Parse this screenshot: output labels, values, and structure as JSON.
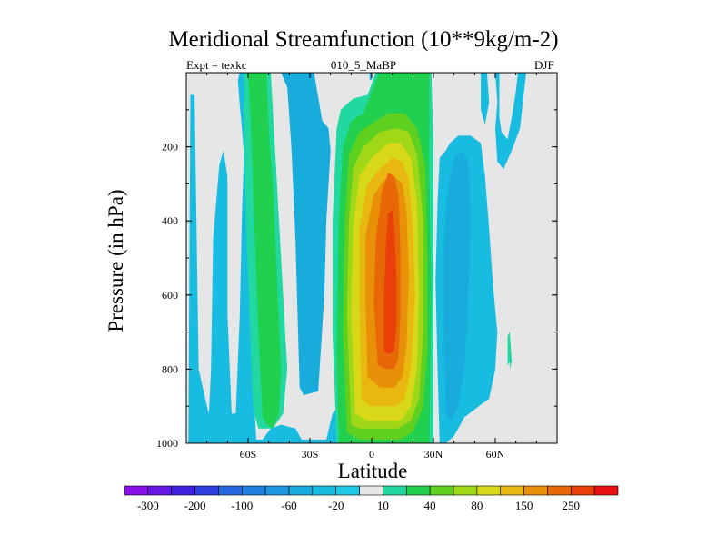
{
  "chart_data": {
    "type": "heatmap",
    "title": "Meridional Streamfunction (10**9kg/m-2)",
    "subtitle_left": "Expt = texkc",
    "subtitle_center": "010_5_MaBP",
    "subtitle_right": "DJF",
    "xlabel": "Latitude",
    "ylabel": "Pressure (in hPa)",
    "xlim": [
      -90,
      90
    ],
    "ylim": [
      1000,
      0
    ],
    "xticks": [
      {
        "value": -60,
        "label": "60S"
      },
      {
        "value": -30,
        "label": "30S"
      },
      {
        "value": 0,
        "label": "0"
      },
      {
        "value": 30,
        "label": "30N"
      },
      {
        "value": 60,
        "label": "60N"
      }
    ],
    "yticks": [
      {
        "value": 200,
        "label": "200"
      },
      {
        "value": 400,
        "label": "400"
      },
      {
        "value": 600,
        "label": "600"
      },
      {
        "value": 800,
        "label": "800"
      },
      {
        "value": 1000,
        "label": "1000"
      }
    ],
    "colorbar": {
      "levels": [
        -300,
        -250,
        -200,
        -150,
        -100,
        -80,
        -60,
        -40,
        -20,
        -10,
        10,
        20,
        40,
        60,
        80,
        100,
        150,
        200,
        250,
        300
      ],
      "labels": [
        "-300",
        "-200",
        "-100",
        "-60",
        "-20",
        "10",
        "40",
        "80",
        "150",
        "250"
      ],
      "colors": [
        "#8a10e8",
        "#6418e4",
        "#4020e0",
        "#3040e0",
        "#2468e0",
        "#2080e0",
        "#1c98e0",
        "#18acdc",
        "#18bce0",
        "#20c8e8",
        "#e6e6e6",
        "#20d8a0",
        "#22d050",
        "#60d020",
        "#a0d818",
        "#d8d818",
        "#e8b810",
        "#e89008",
        "#e86808",
        "#e84008",
        "#e81010"
      ]
    },
    "regions": [
      {
        "name": "background",
        "level_index": 10,
        "points": [
          [
            -90,
            0
          ],
          [
            90,
            0
          ],
          [
            90,
            1000
          ],
          [
            -90,
            1000
          ]
        ]
      },
      {
        "name": "neg-band-far-south",
        "level_index": 8,
        "points": [
          [
            -89,
            1000
          ],
          [
            -88,
            60
          ],
          [
            -86,
            60
          ],
          [
            -84,
            800
          ],
          [
            -80,
            900
          ],
          [
            -79,
            920
          ],
          [
            -78,
            800
          ],
          [
            -77,
            450
          ],
          [
            -74,
            250
          ],
          [
            -72,
            210
          ],
          [
            -70,
            280
          ],
          [
            -70,
            650
          ],
          [
            -68,
            920
          ],
          [
            -66,
            920
          ],
          [
            -64,
            650
          ],
          [
            -63,
            380
          ],
          [
            -62,
            220
          ],
          [
            -63,
            150
          ],
          [
            -64,
            90
          ],
          [
            -65,
            20
          ],
          [
            -64,
            0
          ],
          [
            -62,
            0
          ],
          [
            -60,
            300
          ],
          [
            -58,
            650
          ],
          [
            -57,
            900
          ],
          [
            -56,
            990
          ],
          [
            -53,
            990
          ],
          [
            -49,
            960
          ],
          [
            -44,
            950
          ],
          [
            -37,
            960
          ],
          [
            -34,
            990
          ],
          [
            -22,
            990
          ],
          [
            -19,
            920
          ],
          [
            -16,
            900
          ],
          [
            -14,
            930
          ],
          [
            -12,
            960
          ],
          [
            -9,
            980
          ],
          [
            -5,
            1000
          ]
        ]
      },
      {
        "name": "neg-band-core-south",
        "level_index": 7,
        "points": [
          [
            -44,
            0
          ],
          [
            -41,
            40
          ],
          [
            -39,
            200
          ],
          [
            -37,
            450
          ],
          [
            -36,
            650
          ],
          [
            -35,
            850
          ],
          [
            -33,
            870
          ],
          [
            -26,
            860
          ],
          [
            -23,
            600
          ],
          [
            -22,
            400
          ],
          [
            -20,
            210
          ],
          [
            -21,
            150
          ],
          [
            -24,
            130
          ],
          [
            -28,
            0
          ]
        ]
      },
      {
        "name": "pos-weak-south",
        "level_index": 11,
        "points": [
          [
            -62,
            0
          ],
          [
            -62,
            150
          ],
          [
            -61,
            400
          ],
          [
            -59,
            700
          ],
          [
            -58,
            860
          ],
          [
            -57,
            920
          ],
          [
            -55,
            960
          ],
          [
            -48,
            960
          ],
          [
            -43,
            920
          ],
          [
            -41,
            800
          ],
          [
            -43,
            600
          ],
          [
            -45,
            400
          ],
          [
            -47,
            200
          ],
          [
            -49,
            0
          ]
        ]
      },
      {
        "name": "pos-band-south",
        "level_index": 12,
        "points": [
          [
            -60,
            0
          ],
          [
            -59,
            100
          ],
          [
            -57,
            400
          ],
          [
            -55,
            700
          ],
          [
            -53,
            930
          ],
          [
            -51,
            950
          ],
          [
            -48,
            960
          ],
          [
            -45,
            920
          ],
          [
            -44,
            800
          ],
          [
            -46,
            550
          ],
          [
            -48,
            300
          ],
          [
            -50,
            150
          ],
          [
            -51,
            0
          ]
        ]
      },
      {
        "name": "pos-weak-tropics",
        "level_index": 11,
        "points": [
          [
            -17,
            1000
          ],
          [
            -19,
            700
          ],
          [
            -19,
            400
          ],
          [
            -17,
            150
          ],
          [
            -15,
            100
          ],
          [
            -9,
            70
          ],
          [
            -2,
            60
          ],
          [
            2,
            0
          ],
          [
            29,
            0
          ],
          [
            30,
            200
          ],
          [
            30,
            1000
          ]
        ]
      },
      {
        "name": "pos-band-tropics",
        "level_index": 12,
        "points": [
          [
            -16,
            1000
          ],
          [
            -17,
            750
          ],
          [
            -16,
            400
          ],
          [
            -14,
            200
          ],
          [
            -10,
            130
          ],
          [
            -4,
            110
          ],
          [
            2,
            20
          ],
          [
            4,
            0
          ],
          [
            28,
            0
          ],
          [
            28,
            300
          ],
          [
            29,
            600
          ],
          [
            28,
            1000
          ]
        ]
      },
      {
        "name": "pos-lightgreen-tropics",
        "level_index": 13,
        "points": [
          [
            -12,
            970
          ],
          [
            -14,
            700
          ],
          [
            -13,
            400
          ],
          [
            -11,
            220
          ],
          [
            -6,
            160
          ],
          [
            2,
            130
          ],
          [
            8,
            110
          ],
          [
            16,
            110
          ],
          [
            22,
            150
          ],
          [
            26,
            250
          ],
          [
            27,
            500
          ],
          [
            27,
            750
          ],
          [
            25,
            900
          ],
          [
            20,
            970
          ],
          [
            14,
            990
          ],
          [
            2,
            990
          ],
          [
            -6,
            990
          ]
        ]
      },
      {
        "name": "pos-yellowgreen",
        "level_index": 14,
        "points": [
          [
            -10,
            950
          ],
          [
            -12,
            650
          ],
          [
            -11,
            400
          ],
          [
            -9,
            260
          ],
          [
            -4,
            200
          ],
          [
            4,
            160
          ],
          [
            12,
            150
          ],
          [
            18,
            160
          ],
          [
            22,
            220
          ],
          [
            25,
            400
          ],
          [
            25,
            700
          ],
          [
            23,
            880
          ],
          [
            19,
            940
          ],
          [
            13,
            960
          ],
          [
            2,
            960
          ],
          [
            -6,
            960
          ]
        ]
      },
      {
        "name": "pos-yellow",
        "level_index": 15,
        "points": [
          [
            -8,
            920
          ],
          [
            -10,
            650
          ],
          [
            -9,
            420
          ],
          [
            -6,
            280
          ],
          [
            0,
            230
          ],
          [
            8,
            190
          ],
          [
            14,
            190
          ],
          [
            19,
            230
          ],
          [
            22,
            350
          ],
          [
            23,
            600
          ],
          [
            22,
            800
          ],
          [
            19,
            900
          ],
          [
            14,
            940
          ],
          [
            6,
            940
          ],
          [
            -2,
            940
          ]
        ]
      },
      {
        "name": "pos-lightorange",
        "level_index": 16,
        "points": [
          [
            -5,
            880
          ],
          [
            -6,
            620
          ],
          [
            -6,
            420
          ],
          [
            -2,
            300
          ],
          [
            4,
            260
          ],
          [
            10,
            230
          ],
          [
            15,
            240
          ],
          [
            18,
            290
          ],
          [
            20,
            420
          ],
          [
            21,
            600
          ],
          [
            19,
            800
          ],
          [
            16,
            880
          ],
          [
            12,
            900
          ],
          [
            4,
            900
          ],
          [
            -1,
            900
          ]
        ]
      },
      {
        "name": "pos-orange",
        "level_index": 17,
        "points": [
          [
            -2,
            820
          ],
          [
            -3,
            620
          ],
          [
            -3,
            440
          ],
          [
            1,
            330
          ],
          [
            6,
            290
          ],
          [
            11,
            280
          ],
          [
            15,
            300
          ],
          [
            17,
            380
          ],
          [
            18,
            550
          ],
          [
            17,
            730
          ],
          [
            15,
            820
          ],
          [
            11,
            850
          ],
          [
            4,
            850
          ]
        ]
      },
      {
        "name": "pos-darkorange",
        "level_index": 18,
        "points": [
          [
            3,
            790
          ],
          [
            1,
            620
          ],
          [
            2,
            450
          ],
          [
            5,
            320
          ],
          [
            8,
            270
          ],
          [
            11,
            280
          ],
          [
            13,
            330
          ],
          [
            14,
            480
          ],
          [
            14,
            650
          ],
          [
            13,
            770
          ],
          [
            11,
            800
          ],
          [
            7,
            800
          ]
        ]
      },
      {
        "name": "pos-red",
        "level_index": 19,
        "points": [
          [
            6,
            750
          ],
          [
            6,
            600
          ],
          [
            7,
            450
          ],
          [
            8,
            380
          ],
          [
            10,
            370
          ],
          [
            11,
            420
          ],
          [
            12,
            550
          ],
          [
            12,
            680
          ],
          [
            11,
            750
          ],
          [
            8,
            760
          ]
        ]
      },
      {
        "name": "neg-band-north",
        "level_index": 8,
        "points": [
          [
            33,
            1000
          ],
          [
            32,
            800
          ],
          [
            31,
            560
          ],
          [
            32,
            350
          ],
          [
            33,
            230
          ],
          [
            36,
            210
          ],
          [
            38,
            190
          ],
          [
            42,
            170
          ],
          [
            48,
            170
          ],
          [
            53,
            190
          ],
          [
            55,
            280
          ],
          [
            57,
            420
          ],
          [
            59,
            580
          ],
          [
            61,
            700
          ],
          [
            60,
            800
          ],
          [
            57,
            880
          ],
          [
            52,
            900
          ],
          [
            45,
            930
          ],
          [
            42,
            960
          ],
          [
            40,
            980
          ],
          [
            36,
            1000
          ]
        ]
      },
      {
        "name": "neg-core-north",
        "level_index": 7,
        "points": [
          [
            36,
            930
          ],
          [
            35,
            700
          ],
          [
            35,
            450
          ],
          [
            37,
            310
          ],
          [
            40,
            230
          ],
          [
            44,
            210
          ],
          [
            47,
            240
          ],
          [
            48,
            400
          ],
          [
            47,
            600
          ],
          [
            45,
            800
          ],
          [
            42,
            900
          ],
          [
            39,
            940
          ]
        ]
      },
      {
        "name": "neg-north-upper",
        "level_index": 8,
        "points": [
          [
            53,
            0
          ],
          [
            56,
            0
          ],
          [
            57,
            80
          ],
          [
            55,
            140
          ],
          [
            53,
            100
          ]
        ]
      },
      {
        "name": "neg-north-upper-2",
        "level_index": 8,
        "points": [
          [
            60,
            0
          ],
          [
            62,
            0
          ],
          [
            62,
            120
          ],
          [
            63,
            160
          ],
          [
            66,
            180
          ],
          [
            68,
            120
          ],
          [
            70,
            50
          ],
          [
            71,
            0
          ],
          [
            75,
            0
          ],
          [
            72,
            150
          ],
          [
            68,
            210
          ],
          [
            64,
            260
          ],
          [
            61,
            240
          ],
          [
            60,
            150
          ],
          [
            61,
            80
          ]
        ]
      },
      {
        "name": "pos-blob-north",
        "level_index": 11,
        "points": [
          [
            66,
            710
          ],
          [
            67,
            700
          ],
          [
            68,
            780
          ],
          [
            67,
            800
          ],
          [
            67,
            780
          ],
          [
            66,
            790
          ]
        ]
      },
      {
        "name": "neg-sliver-equator",
        "level_index": 8,
        "points": [
          [
            -1,
            0
          ],
          [
            0,
            0
          ],
          [
            0,
            20
          ],
          [
            -1,
            20
          ]
        ]
      }
    ]
  }
}
